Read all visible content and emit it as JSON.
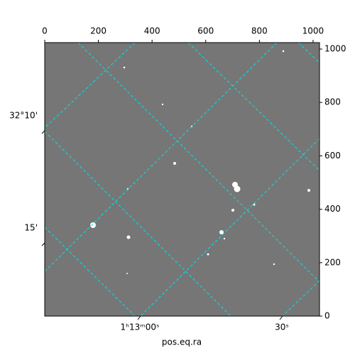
{
  "chart_data": {
    "type": "image",
    "xlabel": "pos.eq.ra",
    "xlim": [
      0,
      1024
    ],
    "xticks": [
      0,
      200,
      400,
      600,
      800,
      1000
    ],
    "ylim": [
      0,
      1024
    ],
    "yticks": [
      0,
      200,
      400,
      600,
      800,
      1000
    ],
    "ra_ticks": [
      "1ʰ13ᵐ00ˢ",
      "30ˢ"
    ],
    "dec_ticks": [
      "32°10'",
      "15'"
    ]
  }
}
